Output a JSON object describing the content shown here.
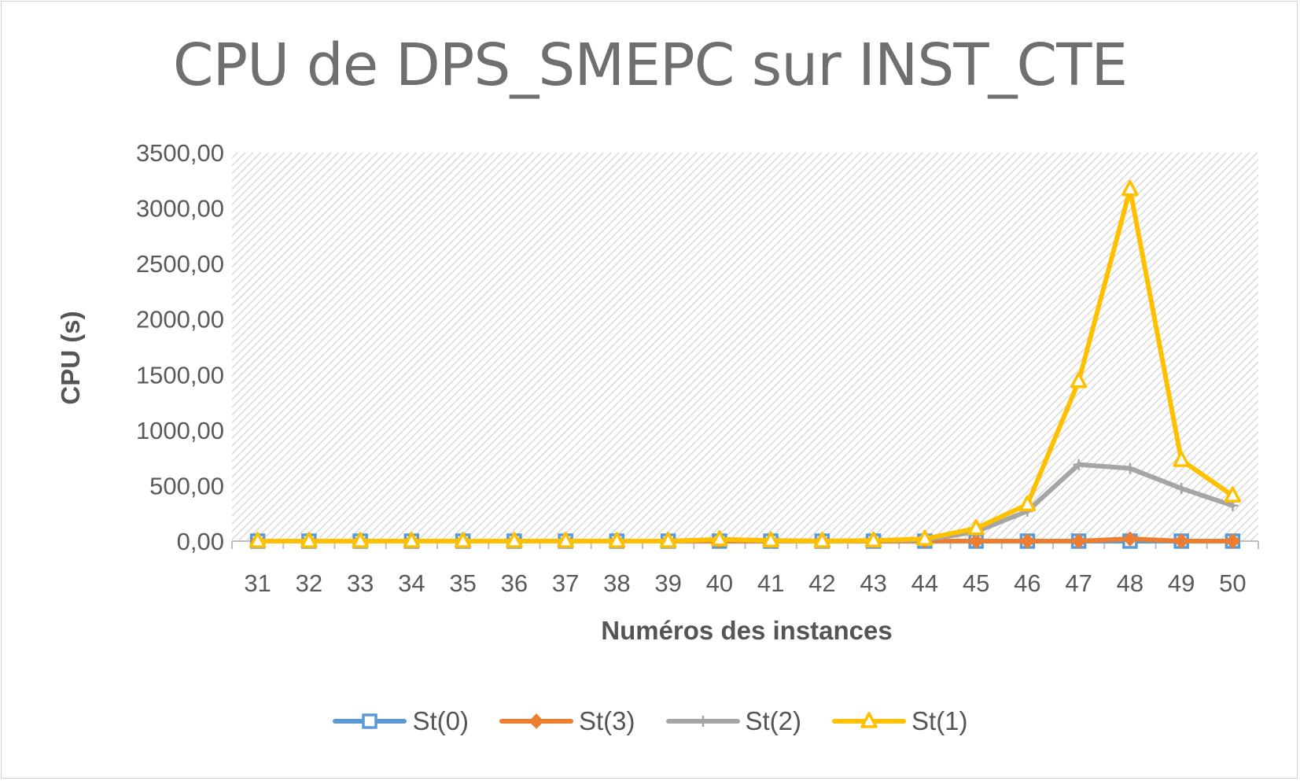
{
  "chart_data": {
    "type": "line",
    "title": "CPU de DPS_SMEPC sur INST_CTE",
    "xlabel": "Numéros des instances",
    "ylabel": "CPU (s)",
    "categories": [
      "31",
      "32",
      "33",
      "34",
      "35",
      "36",
      "37",
      "38",
      "39",
      "40",
      "41",
      "42",
      "43",
      "44",
      "45",
      "46",
      "47",
      "48",
      "49",
      "50"
    ],
    "ylim": [
      0,
      3500
    ],
    "yticks": [
      "0,00",
      "500,00",
      "1000,00",
      "1500,00",
      "2000,00",
      "2500,00",
      "3000,00",
      "3500,00"
    ],
    "legend_position": "bottom",
    "background_pattern": "diagonal-hatch",
    "series": [
      {
        "name": "St(0)",
        "color": "#5b9bd5",
        "marker": "square",
        "values": [
          0,
          0,
          0,
          0,
          0,
          0,
          0,
          0,
          0,
          0,
          0,
          0,
          0,
          0,
          0,
          0,
          0,
          0,
          0,
          0
        ]
      },
      {
        "name": "St(3)",
        "color": "#ed7d31",
        "marker": "diamond",
        "values": [
          0,
          0,
          0,
          0,
          0,
          0,
          0,
          0,
          0,
          0,
          0,
          0,
          0,
          0,
          0,
          0,
          0,
          20,
          0,
          0
        ]
      },
      {
        "name": "St(2)",
        "color": "#a5a5a5",
        "marker": "plus",
        "values": [
          0,
          0,
          0,
          0,
          0,
          0,
          0,
          0,
          0,
          15,
          5,
          0,
          5,
          10,
          85,
          270,
          690,
          655,
          475,
          320
        ]
      },
      {
        "name": "St(1)",
        "color": "#ffc000",
        "marker": "triangle",
        "values": [
          0,
          0,
          0,
          0,
          0,
          0,
          0,
          0,
          0,
          15,
          5,
          0,
          5,
          20,
          115,
          330,
          1440,
          3170,
          730,
          410
        ]
      }
    ]
  }
}
